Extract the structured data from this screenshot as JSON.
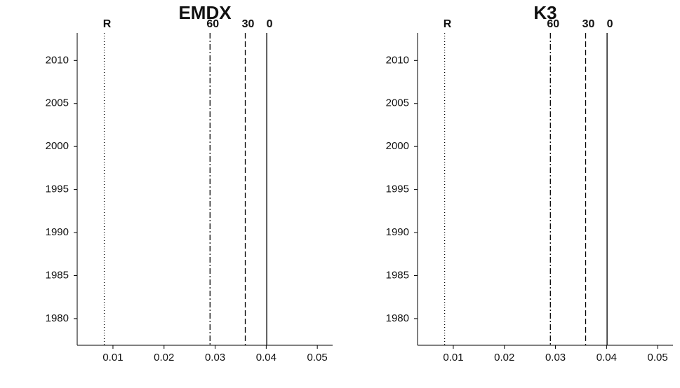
{
  "chart_data": [
    {
      "type": "spectrogram",
      "title": "EMDX",
      "xlim": [
        0.003,
        0.053
      ],
      "xticks": [
        0.01,
        0.02,
        0.03,
        0.04,
        0.05
      ],
      "ylim": [
        1976.9,
        2013.2
      ],
      "yticks": [
        1980,
        1985,
        1990,
        1995,
        2000,
        2005,
        2010
      ],
      "reference_lines": [
        {
          "label": "R",
          "value": 0.0083,
          "style": "dotted"
        },
        {
          "label": "60",
          "value": 0.029,
          "style": "dashdot"
        },
        {
          "label": "30",
          "value": 0.0359,
          "style": "dashed"
        },
        {
          "label": "0",
          "value": 0.0401,
          "style": "solid"
        }
      ]
    },
    {
      "type": "spectrogram",
      "title": "K3",
      "xlim": [
        0.003,
        0.053
      ],
      "xticks": [
        0.01,
        0.02,
        0.03,
        0.04,
        0.05
      ],
      "ylim": [
        1976.9,
        2013.2
      ],
      "yticks": [
        1980,
        1985,
        1990,
        1995,
        2000,
        2005,
        2010
      ],
      "reference_lines": [
        {
          "label": "R",
          "value": 0.0083,
          "style": "dotted"
        },
        {
          "label": "60",
          "value": 0.029,
          "style": "dashdot"
        },
        {
          "label": "30",
          "value": 0.0359,
          "style": "dashed"
        },
        {
          "label": "0",
          "value": 0.0401,
          "style": "solid"
        }
      ]
    }
  ]
}
